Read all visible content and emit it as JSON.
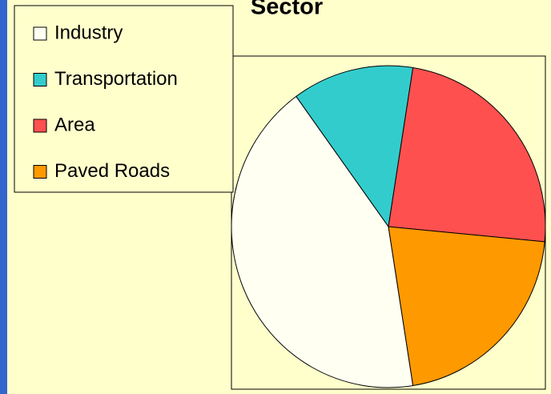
{
  "chart_data": {
    "type": "pie",
    "title": "Sector",
    "categories": [
      "Industry",
      "Transportation",
      "Area",
      "Paved Roads"
    ],
    "values": [
      42.5,
      12.5,
      24,
      21
    ],
    "colors": [
      "#fffff2",
      "#33cccc",
      "#ff5050",
      "#ff9900"
    ],
    "legend": "upper left"
  }
}
